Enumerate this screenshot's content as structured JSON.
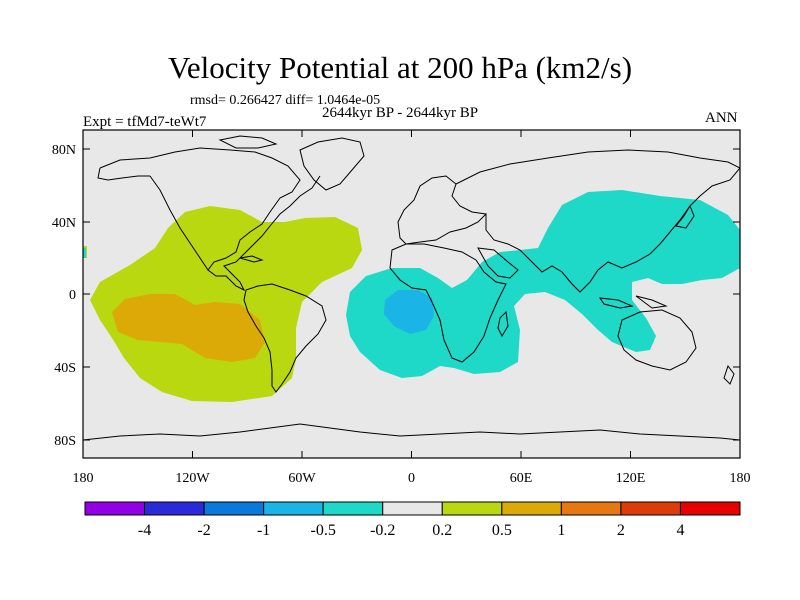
{
  "title": "Velocity Potential at 200 hPa (km2/s)",
  "stats": "rmsd= 0.266427  diff= 1.0464e-05",
  "period": "2644kyr BP - 2644kyr BP",
  "experiment": "Expt = tfMd7-teWt7",
  "season": "ANN",
  "colors": {
    "land_bg": "#e8e8e8",
    "neg_0_2_0_5": "#1ed8c8",
    "neg_0_5_1": "#1ab4e6",
    "pos_0_2_0_5": "#b9d80f",
    "pos_0_5_1": "#dcaa06"
  },
  "map": {
    "lat_ticks": [
      "80N",
      "40N",
      "0",
      "40S",
      "80S"
    ],
    "lon_ticks": [
      "180",
      "120W",
      "60W",
      "0",
      "60E",
      "120E",
      "180"
    ]
  },
  "colorbar": {
    "colors": [
      "#9400e6",
      "#2a2ad8",
      "#0a78dc",
      "#1ab4e6",
      "#1ed8c8",
      "#e8e8e8",
      "#b9d80f",
      "#dcaa06",
      "#e67814",
      "#dc3c08",
      "#e60000"
    ],
    "labels": [
      "-4",
      "-2",
      "-1",
      "-0.5",
      "-0.2",
      "0.2",
      "0.5",
      "1",
      "2",
      "4"
    ]
  }
}
